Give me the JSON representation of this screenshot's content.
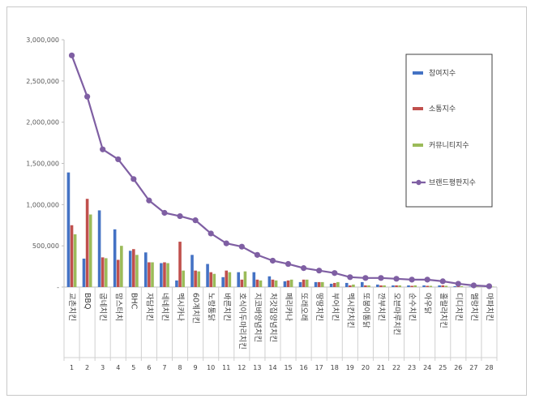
{
  "chart_data": {
    "type": "bar",
    "title": "",
    "xlabel": "",
    "ylabel": "",
    "ylim": [
      0,
      3000000
    ],
    "yticks": [
      0,
      500000,
      1000000,
      1500000,
      2000000,
      2500000,
      3000000
    ],
    "ytick_labels": [
      "-",
      "500,000",
      "1,000,000",
      "1,500,000",
      "2,000,000",
      "2,500,000",
      "3,000,000"
    ],
    "grid": false,
    "legend_position": "right",
    "ranks": [
      "1",
      "2",
      "3",
      "4",
      "5",
      "6",
      "7",
      "8",
      "9",
      "10",
      "11",
      "12",
      "13",
      "14",
      "15",
      "16",
      "17",
      "18",
      "19",
      "20",
      "21",
      "22",
      "23",
      "24",
      "25",
      "26",
      "27",
      "28"
    ],
    "categories": [
      "교촌치킨",
      "BBQ",
      "굽네치킨",
      "맘스터치",
      "BHC",
      "자담치킨",
      "네네치킨",
      "멕시카나",
      "60계치킨",
      "노랑통닭",
      "바른치킨",
      "호식이두마리치킨",
      "지코바양념치킨",
      "처갓집양념치킨",
      "페리카나",
      "또래오래",
      "땅땅치킨",
      "부어치킨",
      "멕시칸치킨",
      "또봉이통닭",
      "깐부치킨",
      "오븐마루치킨",
      "순수치킨",
      "아우닭",
      "훌랄라치킨",
      "디디치킨",
      "멜랑치킨",
      "마파치킨"
    ],
    "series": [
      {
        "name": "참여지수",
        "type": "bar",
        "color": "#4472c4",
        "values": [
          1390000,
          345000,
          930000,
          700000,
          440000,
          420000,
          290000,
          80000,
          390000,
          280000,
          120000,
          180000,
          180000,
          130000,
          70000,
          60000,
          60000,
          40000,
          50000,
          60000,
          30000,
          20000,
          20000,
          20000,
          20000,
          10000,
          5000,
          5000
        ]
      },
      {
        "name": "소통지수",
        "type": "bar",
        "color": "#c0504d",
        "values": [
          750000,
          1070000,
          360000,
          330000,
          460000,
          300000,
          300000,
          550000,
          200000,
          180000,
          200000,
          90000,
          90000,
          90000,
          80000,
          90000,
          60000,
          50000,
          20000,
          20000,
          20000,
          20000,
          15000,
          15000,
          20000,
          10000,
          5000,
          5000
        ]
      },
      {
        "name": "커뮤니티지수",
        "type": "bar",
        "color": "#9bbb59",
        "values": [
          640000,
          880000,
          350000,
          500000,
          390000,
          300000,
          290000,
          200000,
          190000,
          160000,
          180000,
          190000,
          80000,
          80000,
          90000,
          90000,
          60000,
          60000,
          30000,
          20000,
          20000,
          20000,
          20000,
          15000,
          15000,
          10000,
          5000,
          5000
        ]
      },
      {
        "name": "브랜드평판지수",
        "type": "line",
        "color": "#7f5fa3",
        "values": [
          2810000,
          2310000,
          1670000,
          1550000,
          1310000,
          1050000,
          900000,
          860000,
          810000,
          650000,
          530000,
          490000,
          390000,
          320000,
          280000,
          230000,
          200000,
          170000,
          120000,
          110000,
          110000,
          100000,
          90000,
          90000,
          70000,
          40000,
          20000,
          10000
        ]
      }
    ]
  }
}
